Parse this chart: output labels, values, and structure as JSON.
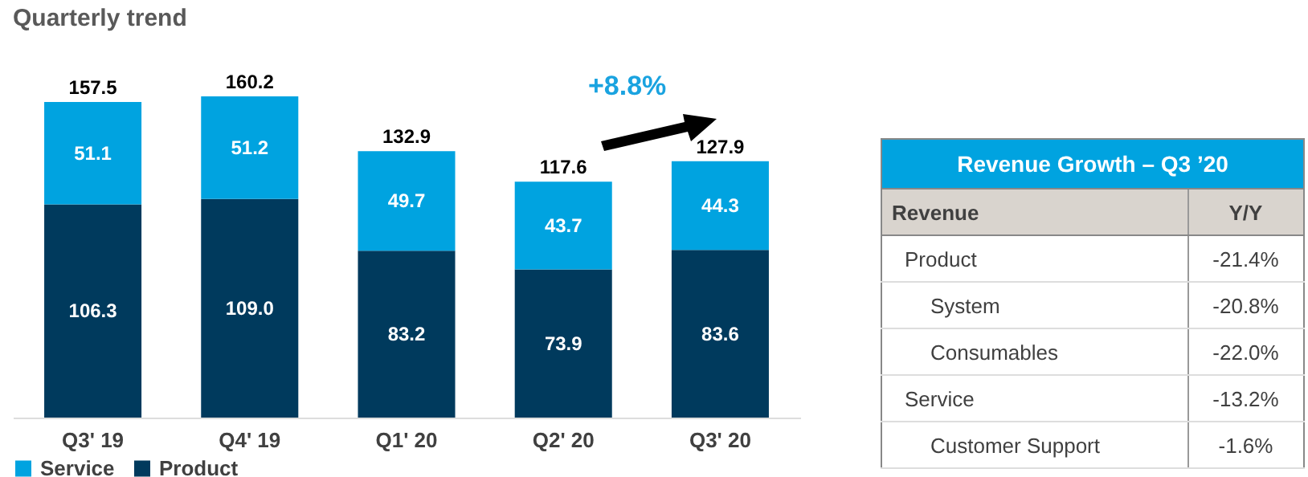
{
  "chart_data": [
    {
      "type": "bar",
      "title": "Quarterly trend",
      "categories": [
        "Q3' 19",
        "Q4' 19",
        "Q1' 20",
        "Q2' 20",
        "Q3' 20"
      ],
      "stacked": true,
      "legend": "bottom",
      "series": [
        {
          "name": "Product",
          "color": "#003a5d",
          "values": [
            106.3,
            109.0,
            83.2,
            73.9,
            83.6
          ],
          "value_labels": [
            "106.3",
            "109.0",
            "83.2",
            "73.9",
            "83.6"
          ]
        },
        {
          "name": "Service",
          "color": "#00a3e0",
          "values": [
            51.1,
            51.2,
            49.7,
            43.7,
            44.3
          ],
          "value_labels": [
            "51.1",
            "51.2",
            "49.7",
            "43.7",
            "44.3"
          ]
        }
      ],
      "totals": [
        "157.5",
        "160.2",
        "132.9",
        "117.6",
        "127.9"
      ],
      "annotations": [
        "+8.8%"
      ]
    },
    {
      "type": "other",
      "title": "Revenue Growth – Q3 ’20",
      "annotations": [
        "Revenue",
        "Y/Y",
        "Product",
        "-21.4%",
        "System",
        "-20.8%",
        "Consumables",
        "-22.0%",
        "Service",
        "-13.2%",
        "Customer Support",
        "-1.6%"
      ]
    }
  ]
}
